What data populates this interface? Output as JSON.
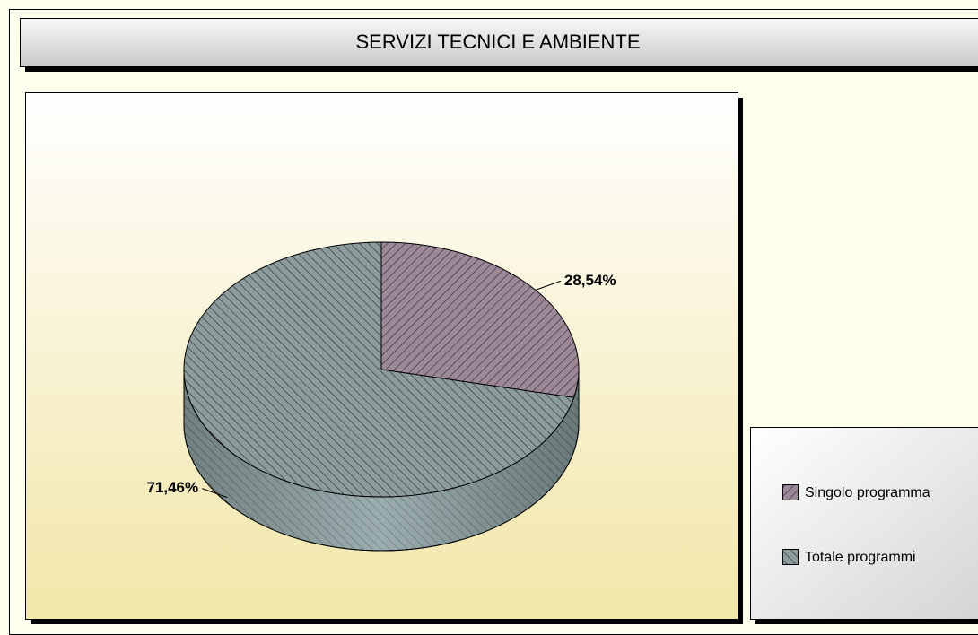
{
  "chart_data": {
    "type": "pie",
    "title": "SERVIZI TECNICI E AMBIENTE",
    "categories": [
      "Singolo programma",
      "Totale programmi"
    ],
    "values": [
      28.54,
      71.46
    ],
    "value_labels": [
      "28,54%",
      "71,46%"
    ],
    "colors": [
      "#9c8898",
      "#8c9c9c"
    ],
    "legend": "right"
  }
}
